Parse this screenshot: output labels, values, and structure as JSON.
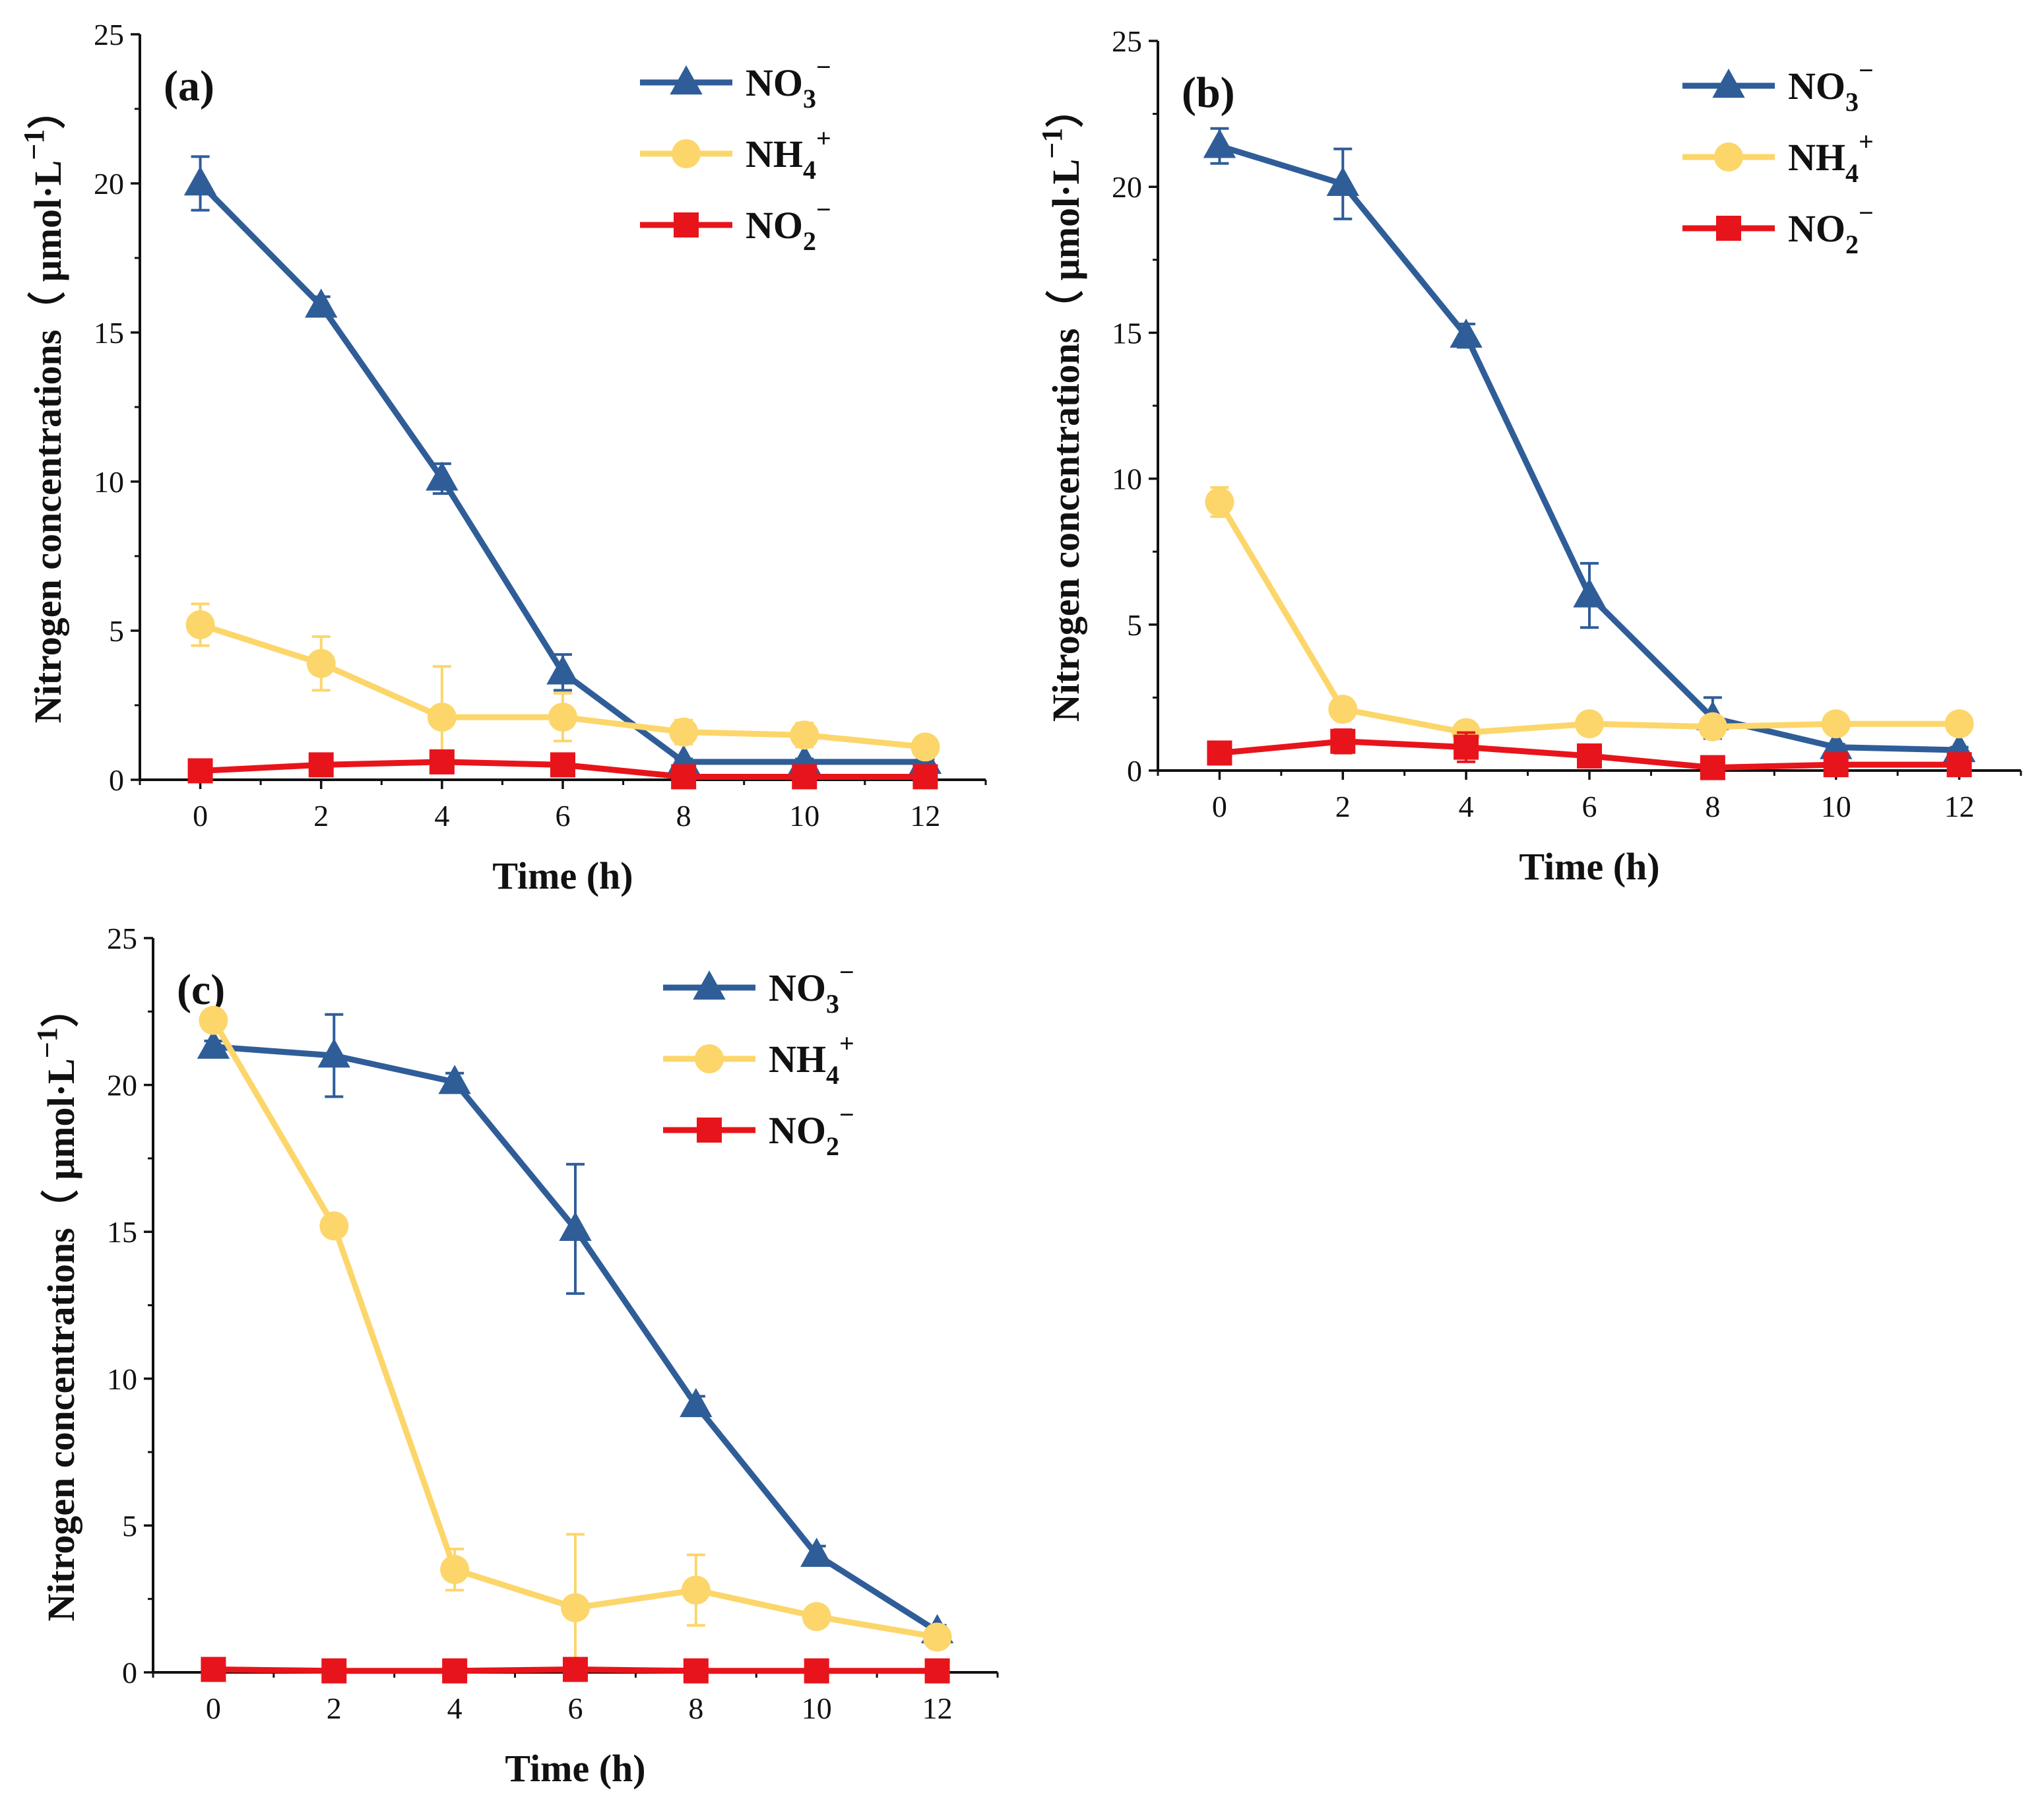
{
  "chart_data": [
    {
      "type": "line",
      "panel_label": "(a)",
      "xlabel": "Time (h)",
      "ylabel": "Nitrogen concentrations（ μmol·L",
      "ylabel_exp": "−1",
      "ylabel_close": "）",
      "x": [
        0,
        2,
        4,
        6,
        8,
        10,
        12
      ],
      "xlim": [
        -1,
        13
      ],
      "ylim": [
        0,
        25
      ],
      "xticks": [
        "0",
        "2",
        "4",
        "6",
        "8",
        "10",
        "12"
      ],
      "yticks": [
        "0",
        "5",
        "10",
        "15",
        "20",
        "25"
      ],
      "legend_position": "top-right",
      "series": [
        {
          "name": "NO3-",
          "label_main": "NO",
          "label_sub": "3",
          "label_sup": "−",
          "color": "#2F5D98",
          "marker": "triangle",
          "values": [
            20.0,
            15.9,
            10.1,
            3.6,
            0.6,
            0.6,
            0.6
          ],
          "errors": [
            0.9,
            0.3,
            0.5,
            0.6,
            0.1,
            0.1,
            0.1
          ]
        },
        {
          "name": "NH4+",
          "label_main": "NH",
          "label_sub": "4",
          "label_sup": "+",
          "color": "#FCD66A",
          "marker": "circle",
          "values": [
            5.2,
            3.9,
            2.1,
            2.1,
            1.6,
            1.5,
            1.1
          ],
          "errors": [
            0.7,
            0.9,
            1.7,
            0.8,
            0.4,
            0.4,
            0.2
          ]
        },
        {
          "name": "NO2-",
          "label_main": "NO",
          "label_sub": "2",
          "label_sup": "−",
          "color": "#E8141B",
          "marker": "square",
          "values": [
            0.3,
            0.5,
            0.6,
            0.5,
            0.1,
            0.1,
            0.1
          ],
          "errors": [
            0.1,
            0.1,
            0.2,
            0.1,
            0.05,
            0.05,
            0.05
          ]
        }
      ]
    },
    {
      "type": "line",
      "panel_label": "(b)",
      "xlabel": "Time (h)",
      "ylabel": "Nitrogen concentrations（ μmol·L",
      "ylabel_exp": "−1",
      "ylabel_close": "）",
      "x": [
        0,
        2,
        4,
        6,
        8,
        10,
        12
      ],
      "xlim": [
        -1,
        13
      ],
      "ylim": [
        0,
        25
      ],
      "xticks": [
        "0",
        "2",
        "4",
        "6",
        "8",
        "10",
        "12"
      ],
      "yticks": [
        "0",
        "5",
        "10",
        "15",
        "20",
        "25"
      ],
      "legend_position": "top-right",
      "series": [
        {
          "name": "NO3-",
          "label_main": "NO",
          "label_sub": "3",
          "label_sup": "−",
          "color": "#2F5D98",
          "marker": "triangle",
          "values": [
            21.4,
            20.1,
            14.9,
            6.0,
            1.8,
            0.8,
            0.7
          ],
          "errors": [
            0.6,
            1.2,
            0.4,
            1.1,
            0.7,
            0.1,
            0.1
          ]
        },
        {
          "name": "NH4+",
          "label_main": "NH",
          "label_sub": "4",
          "label_sup": "+",
          "color": "#FCD66A",
          "marker": "circle",
          "values": [
            9.2,
            2.1,
            1.3,
            1.6,
            1.5,
            1.6,
            1.6
          ],
          "errors": [
            0.5,
            0.2,
            0.2,
            0.2,
            0.2,
            0.1,
            0.1
          ]
        },
        {
          "name": "NO2-",
          "label_main": "NO",
          "label_sub": "2",
          "label_sup": "−",
          "color": "#E8141B",
          "marker": "square",
          "values": [
            0.6,
            1.0,
            0.8,
            0.5,
            0.1,
            0.2,
            0.2
          ],
          "errors": [
            0.1,
            0.4,
            0.5,
            0.1,
            0.05,
            0.05,
            0.05
          ]
        }
      ]
    },
    {
      "type": "line",
      "panel_label": "(c)",
      "xlabel": "Time (h)",
      "ylabel": "Nitrogen concentrations（ μmol·L",
      "ylabel_exp": "−1",
      "ylabel_close": "）",
      "x": [
        0,
        2,
        4,
        6,
        8,
        10,
        12
      ],
      "xlim": [
        -1,
        13
      ],
      "ylim": [
        0,
        25
      ],
      "xticks": [
        "0",
        "2",
        "4",
        "6",
        "8",
        "10",
        "12"
      ],
      "yticks": [
        "0",
        "5",
        "10",
        "15",
        "20",
        "25"
      ],
      "legend_position": "top-right",
      "series": [
        {
          "name": "NO3-",
          "label_main": "NO",
          "label_sub": "3",
          "label_sup": "−",
          "color": "#2F5D98",
          "marker": "triangle",
          "values": [
            21.3,
            21.0,
            20.1,
            15.1,
            9.1,
            4.0,
            1.4
          ],
          "errors": [
            0.2,
            1.4,
            0.3,
            2.2,
            0.3,
            0.3,
            0.2
          ]
        },
        {
          "name": "NH4+",
          "label_main": "NH",
          "label_sub": "4",
          "label_sup": "+",
          "color": "#FCD66A",
          "marker": "circle",
          "values": [
            22.2,
            15.2,
            3.5,
            2.2,
            2.8,
            1.9,
            1.2
          ],
          "errors": [
            0.2,
            0.2,
            0.7,
            2.5,
            1.2,
            0.2,
            0.2
          ]
        },
        {
          "name": "NO2-",
          "label_main": "NO",
          "label_sub": "2",
          "label_sup": "−",
          "color": "#E8141B",
          "marker": "square",
          "values": [
            0.1,
            0.05,
            0.05,
            0.1,
            0.05,
            0.05,
            0.05
          ],
          "errors": [
            0.05,
            0.05,
            0.05,
            0.1,
            0.05,
            0.05,
            0.05
          ]
        }
      ]
    }
  ]
}
